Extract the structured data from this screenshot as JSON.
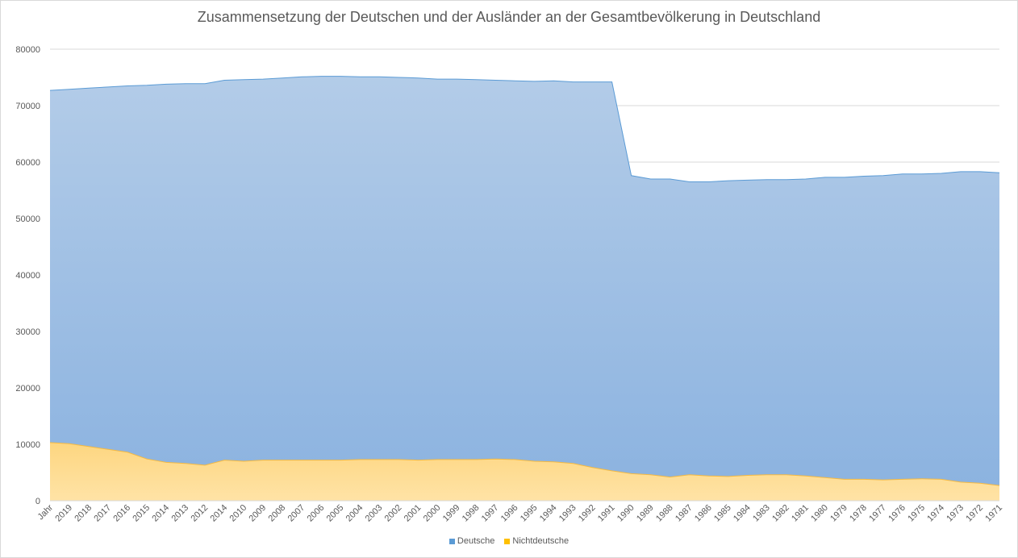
{
  "chart_data": {
    "type": "area",
    "stacked": true,
    "title": "Zusammensetzung der Deutschen und der Ausländer an der Gesamtbevölkerung in Deutschland",
    "xlabel": "",
    "ylabel": "",
    "ylim": [
      0,
      80000
    ],
    "yticks": [
      "0",
      "10000",
      "20000",
      "30000",
      "40000",
      "50000",
      "60000",
      "70000",
      "80000"
    ],
    "grid": true,
    "legend_position": "bottom",
    "categories": [
      "Jahr",
      "2019",
      "2018",
      "2017",
      "2016",
      "2015",
      "2014",
      "2013",
      "2012",
      "2014",
      "2010",
      "2009",
      "2008",
      "2007",
      "2006",
      "2005",
      "2004",
      "2003",
      "2002",
      "2001",
      "2000",
      "1999",
      "1998",
      "1997",
      "1996",
      "1995",
      "1994",
      "1993",
      "1992",
      "1991",
      "1990",
      "1989",
      "1988",
      "1987",
      "1986",
      "1985",
      "1984",
      "1983",
      "1982",
      "1981",
      "1980",
      "1979",
      "1978",
      "1977",
      "1976",
      "1975",
      "1974",
      "1973",
      "1972",
      "1971"
    ],
    "series": [
      {
        "name": "Deutsche",
        "color": "#5b9bd5",
        "values": [
          62400,
          62800,
          63500,
          64200,
          64900,
          66200,
          67000,
          67300,
          67600,
          67300,
          67600,
          67500,
          67700,
          67900,
          68000,
          68000,
          67800,
          67800,
          67700,
          67700,
          67400,
          67400,
          67300,
          67100,
          67100,
          67300,
          67500,
          67600,
          68300,
          68900,
          52800,
          52400,
          52800,
          51900,
          52100,
          52400,
          52300,
          52300,
          52300,
          52600,
          53200,
          53500,
          53700,
          53900,
          54100,
          54000,
          54200,
          55000,
          55200,
          55400
        ]
      },
      {
        "name": "Nichtdeutsche",
        "color": "#ffc000",
        "values": [
          10300,
          10100,
          9600,
          9100,
          8600,
          7400,
          6800,
          6600,
          6300,
          7200,
          7000,
          7200,
          7200,
          7200,
          7200,
          7200,
          7300,
          7300,
          7300,
          7200,
          7300,
          7300,
          7300,
          7400,
          7300,
          7000,
          6900,
          6600,
          5900,
          5300,
          4800,
          4600,
          4200,
          4600,
          4400,
          4300,
          4500,
          4600,
          4600,
          4400,
          4100,
          3800,
          3800,
          3700,
          3800,
          3900,
          3800,
          3300,
          3100,
          2700
        ]
      }
    ]
  }
}
